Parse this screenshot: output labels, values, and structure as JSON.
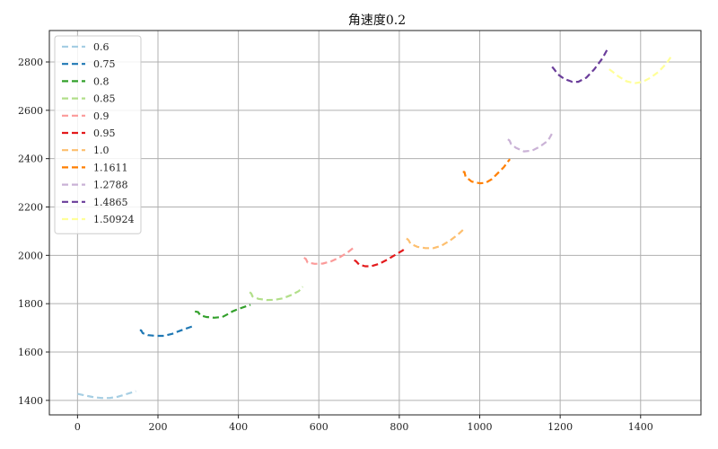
{
  "chart_data": {
    "type": "line",
    "title": "角速度0.2",
    "xlabel": "",
    "ylabel": "",
    "xlim": [
      -70,
      1550
    ],
    "ylim": [
      1340,
      2930
    ],
    "xticks": [
      0,
      200,
      400,
      600,
      800,
      1000,
      1200,
      1400
    ],
    "yticks": [
      1400,
      1600,
      1800,
      2000,
      2200,
      2400,
      2600,
      2800
    ],
    "grid": true,
    "legend_position": "top-left",
    "line_style": "dashed",
    "series": [
      {
        "name": "0.6",
        "color": "#a6cee3",
        "points": [
          [
            0,
            1427
          ],
          [
            20,
            1420
          ],
          [
            40,
            1413
          ],
          [
            60,
            1410
          ],
          [
            80,
            1410
          ],
          [
            100,
            1415
          ],
          [
            120,
            1425
          ],
          [
            145,
            1438
          ]
        ]
      },
      {
        "name": "0.75",
        "color": "#1f78b4",
        "points": [
          [
            155,
            1690
          ],
          [
            158,
            1690
          ],
          [
            162,
            1678
          ],
          [
            175,
            1670
          ],
          [
            195,
            1667
          ],
          [
            215,
            1667
          ],
          [
            235,
            1675
          ],
          [
            255,
            1688
          ],
          [
            275,
            1700
          ],
          [
            292,
            1710
          ]
        ]
      },
      {
        "name": "0.8",
        "color": "#33a02c",
        "points": [
          [
            292,
            1768
          ],
          [
            300,
            1765
          ],
          [
            305,
            1752
          ],
          [
            320,
            1745
          ],
          [
            340,
            1742
          ],
          [
            360,
            1745
          ],
          [
            375,
            1758
          ],
          [
            385,
            1768
          ],
          [
            400,
            1778
          ],
          [
            420,
            1790
          ],
          [
            430,
            1795
          ]
        ]
      },
      {
        "name": "0.85",
        "color": "#b2df8a",
        "points": [
          [
            428,
            1848
          ],
          [
            432,
            1842
          ],
          [
            435,
            1830
          ],
          [
            450,
            1820
          ],
          [
            470,
            1815
          ],
          [
            490,
            1816
          ],
          [
            510,
            1822
          ],
          [
            530,
            1835
          ],
          [
            550,
            1852
          ],
          [
            560,
            1870
          ]
        ]
      },
      {
        "name": "0.9",
        "color": "#fb9a99",
        "points": [
          [
            563,
            1990
          ],
          [
            568,
            1985
          ],
          [
            572,
            1970
          ],
          [
            590,
            1965
          ],
          [
            610,
            1966
          ],
          [
            630,
            1975
          ],
          [
            650,
            1990
          ],
          [
            670,
            2010
          ],
          [
            685,
            2030
          ]
        ]
      },
      {
        "name": "0.95",
        "color": "#e31a1c",
        "points": [
          [
            688,
            1980
          ],
          [
            693,
            1975
          ],
          [
            700,
            1962
          ],
          [
            715,
            1955
          ],
          [
            730,
            1955
          ],
          [
            750,
            1965
          ],
          [
            770,
            1982
          ],
          [
            790,
            2002
          ],
          [
            808,
            2020
          ],
          [
            815,
            2030
          ]
        ]
      },
      {
        "name": "1.0",
        "color": "#fdbf6f",
        "points": [
          [
            818,
            2070
          ],
          [
            823,
            2063
          ],
          [
            828,
            2048
          ],
          [
            845,
            2035
          ],
          [
            865,
            2030
          ],
          [
            885,
            2030
          ],
          [
            905,
            2040
          ],
          [
            925,
            2060
          ],
          [
            945,
            2085
          ],
          [
            960,
            2108
          ]
        ]
      },
      {
        "name": "1.1611",
        "color": "#ff7f00",
        "points": [
          [
            958,
            2345
          ],
          [
            962,
            2345
          ],
          [
            965,
            2325
          ],
          [
            980,
            2305
          ],
          [
            1000,
            2298
          ],
          [
            1015,
            2300
          ],
          [
            1030,
            2315
          ],
          [
            1045,
            2340
          ],
          [
            1060,
            2365
          ],
          [
            1075,
            2398
          ]
        ]
      },
      {
        "name": "1.2788",
        "color": "#cab2d6",
        "points": [
          [
            1070,
            2480
          ],
          [
            1074,
            2475
          ],
          [
            1078,
            2460
          ],
          [
            1090,
            2445
          ],
          [
            1110,
            2430
          ],
          [
            1130,
            2433
          ],
          [
            1150,
            2450
          ],
          [
            1170,
            2475
          ],
          [
            1180,
            2505
          ]
        ]
      },
      {
        "name": "1.4865",
        "color": "#6a3d9a",
        "points": [
          [
            1180,
            2780
          ],
          [
            1185,
            2770
          ],
          [
            1195,
            2748
          ],
          [
            1210,
            2730
          ],
          [
            1230,
            2718
          ],
          [
            1245,
            2718
          ],
          [
            1265,
            2735
          ],
          [
            1285,
            2770
          ],
          [
            1305,
            2815
          ],
          [
            1320,
            2860
          ]
        ]
      },
      {
        "name": "1.50924",
        "color": "#ffff99",
        "points": [
          [
            1322,
            2770
          ],
          [
            1330,
            2760
          ],
          [
            1345,
            2740
          ],
          [
            1365,
            2720
          ],
          [
            1385,
            2712
          ],
          [
            1405,
            2718
          ],
          [
            1425,
            2735
          ],
          [
            1445,
            2760
          ],
          [
            1465,
            2795
          ],
          [
            1478,
            2828
          ]
        ]
      }
    ]
  }
}
